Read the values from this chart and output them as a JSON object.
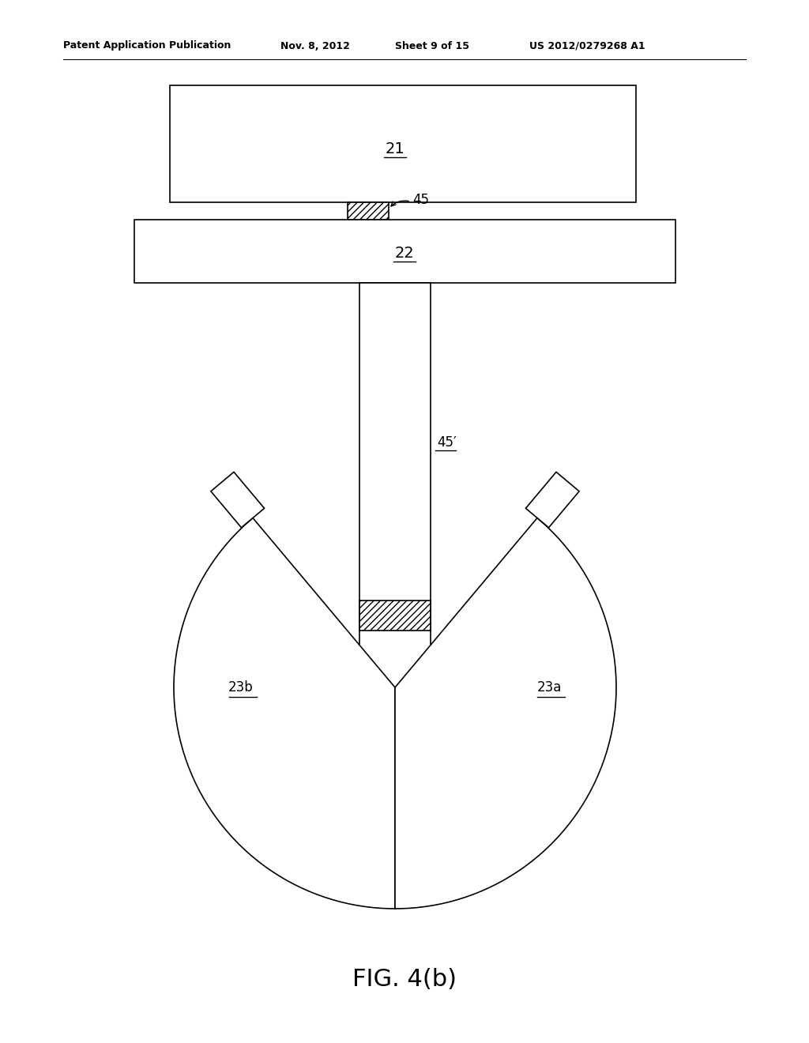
{
  "bg_color": "#ffffff",
  "line_color": "#000000",
  "header_text": "Patent Application Publication",
  "header_date": "Nov. 8, 2012",
  "header_sheet": "Sheet 9 of 15",
  "header_patent": "US 2012/0279268 A1",
  "caption": "FIG. 4(b)",
  "label_21": "21",
  "label_22": "22",
  "label_45": "45",
  "label_45p": "45′",
  "label_23a": "23a",
  "label_23b": "23b",
  "lw": 1.2
}
